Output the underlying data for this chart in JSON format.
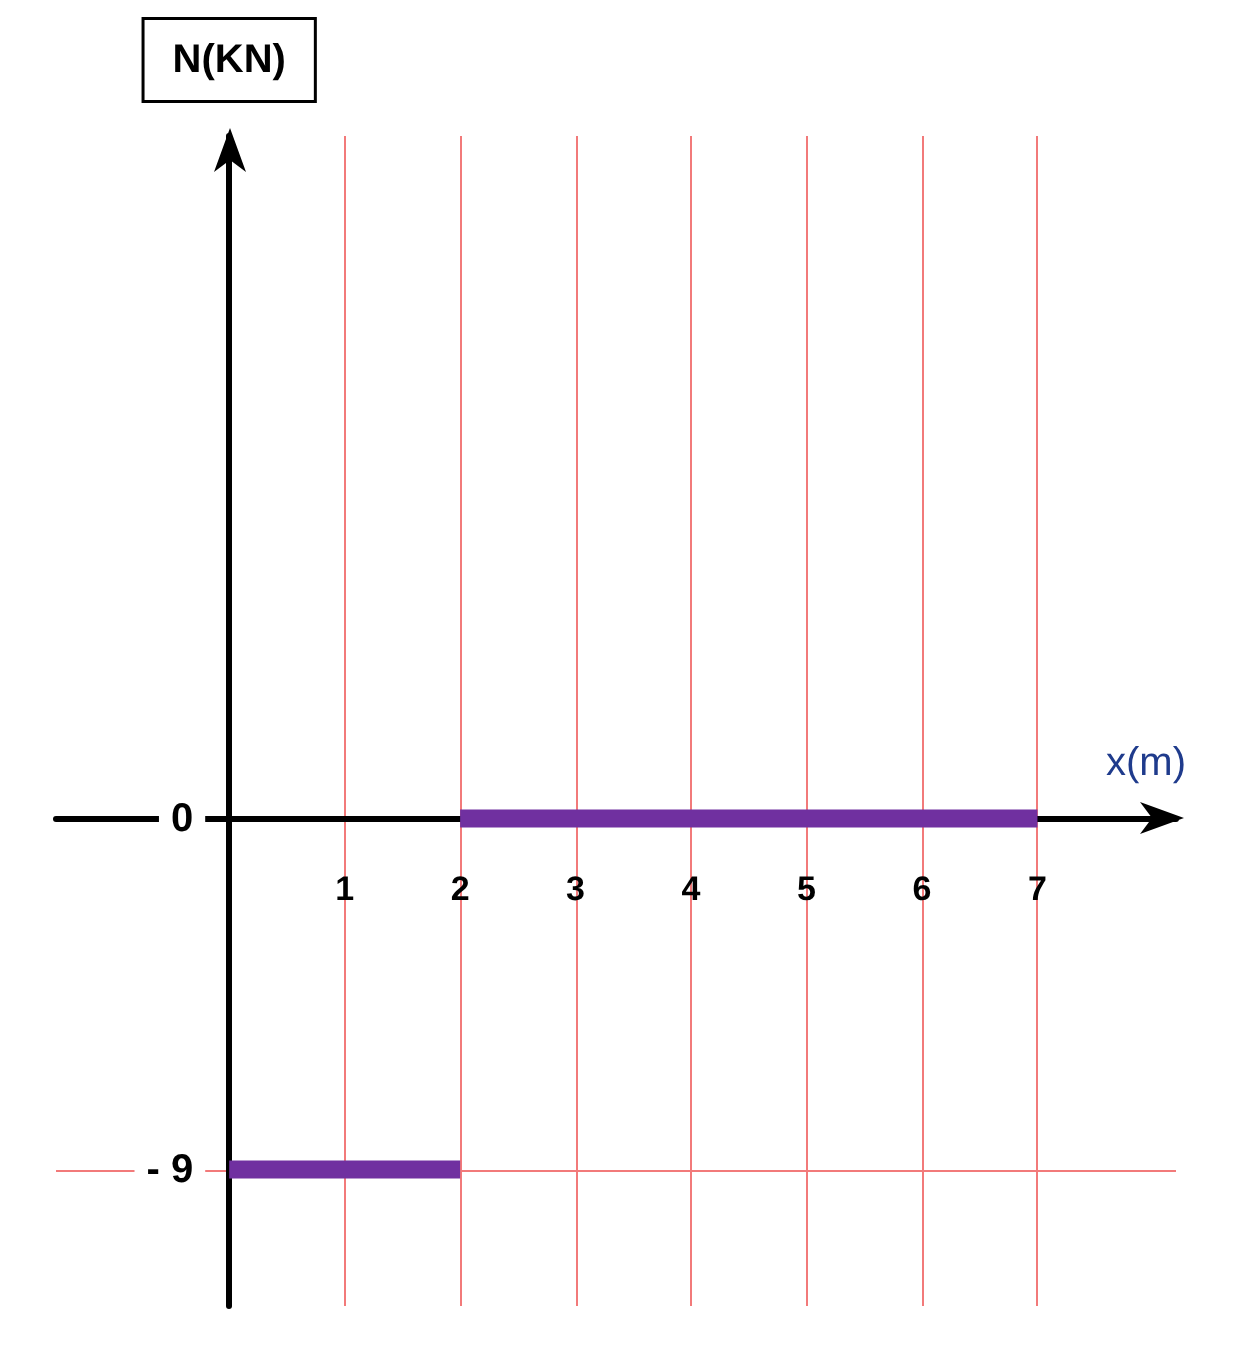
{
  "chart_data": {
    "type": "line",
    "xlabel": "x(m)",
    "ylabel": "N(KN)",
    "xlim": [
      -1.5,
      8.2
    ],
    "xticks": [
      1,
      2,
      3,
      4,
      5,
      6,
      7
    ],
    "ylim": [
      -12.5,
      17.5
    ],
    "yticks": [
      {
        "value": -9,
        "label": "- 9"
      },
      0
    ],
    "series": [
      {
        "color": "#7030a0",
        "x": [
          0,
          2
        ],
        "values": [
          -9,
          -9
        ]
      },
      {
        "color": "#7030a0",
        "x": [
          2,
          7
        ],
        "values": [
          0,
          0
        ]
      }
    ],
    "grid": true,
    "marker": "none",
    "line_style": "solid"
  }
}
